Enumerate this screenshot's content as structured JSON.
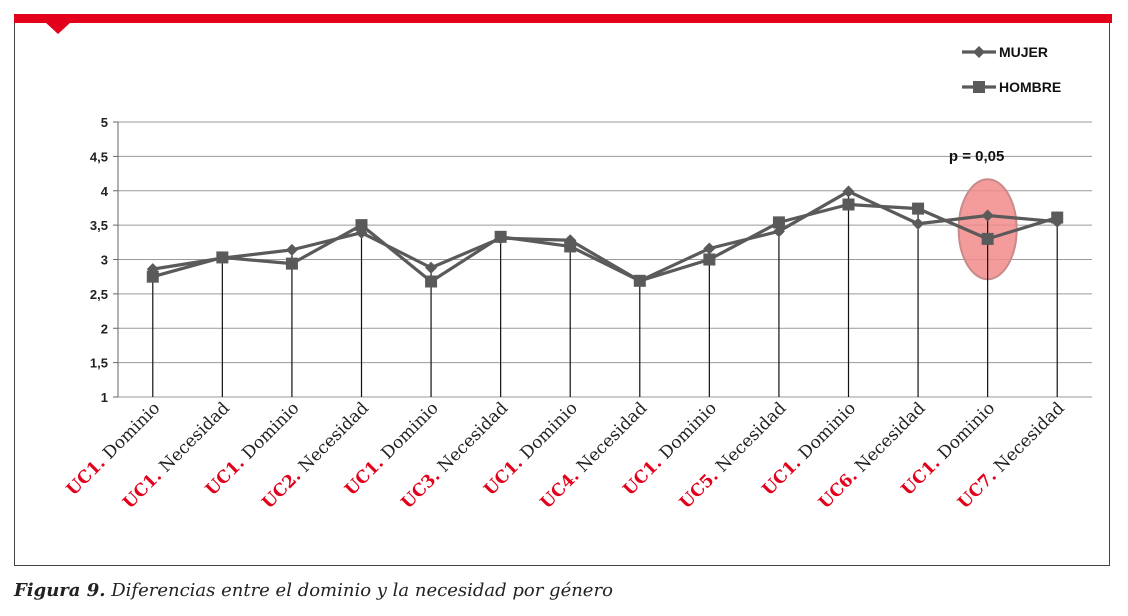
{
  "chart_data": {
    "type": "line",
    "ylim": [
      1,
      5
    ],
    "yticks": [
      "1",
      "1,5",
      "2",
      "2,5",
      "3",
      "3,5",
      "4",
      "4,5",
      "5"
    ],
    "ytick_values": [
      1,
      1.5,
      2,
      2.5,
      3,
      3.5,
      4,
      4.5,
      5
    ],
    "categories": [
      {
        "uc": "UC1.",
        "label": "Dominio"
      },
      {
        "uc": "UC1.",
        "label": "Necesidad"
      },
      {
        "uc": "UC1.",
        "label": "Dominio"
      },
      {
        "uc": "UC2.",
        "label": "Necesidad"
      },
      {
        "uc": "UC1.",
        "label": "Dominio"
      },
      {
        "uc": "UC3.",
        "label": "Necesidad"
      },
      {
        "uc": "UC1.",
        "label": "Dominio"
      },
      {
        "uc": "UC4.",
        "label": "Necesidad"
      },
      {
        "uc": "UC1.",
        "label": "Dominio"
      },
      {
        "uc": "UC5.",
        "label": "Necesidad"
      },
      {
        "uc": "UC1.",
        "label": "Dominio"
      },
      {
        "uc": "UC6.",
        "label": "Necesidad"
      },
      {
        "uc": "UC1.",
        "label": "Dominio"
      },
      {
        "uc": "UC7.",
        "label": "Necesidad"
      }
    ],
    "series": [
      {
        "name": "MUJER",
        "marker": "diamond",
        "color": "#5a5a5a",
        "values": [
          2.86,
          3.02,
          3.14,
          3.39,
          2.88,
          3.31,
          3.28,
          2.69,
          3.16,
          3.41,
          3.99,
          3.52,
          3.64,
          3.55
        ]
      },
      {
        "name": "HOMBRE",
        "marker": "square",
        "color": "#5a5a5a",
        "values": [
          2.75,
          3.03,
          2.94,
          3.5,
          2.68,
          3.33,
          3.19,
          2.69,
          3.0,
          3.54,
          3.8,
          3.74,
          3.3,
          3.61
        ]
      }
    ],
    "annotation": {
      "text": "p = 0,05",
      "category_index": 12
    },
    "highlight_color": "#f28b8b",
    "category_color": "#e3001b",
    "legend_position": "top-right",
    "grid": true
  },
  "caption": {
    "figure": "Figura 9.",
    "text": " Diferencias entre el dominio y la necesidad por género"
  }
}
